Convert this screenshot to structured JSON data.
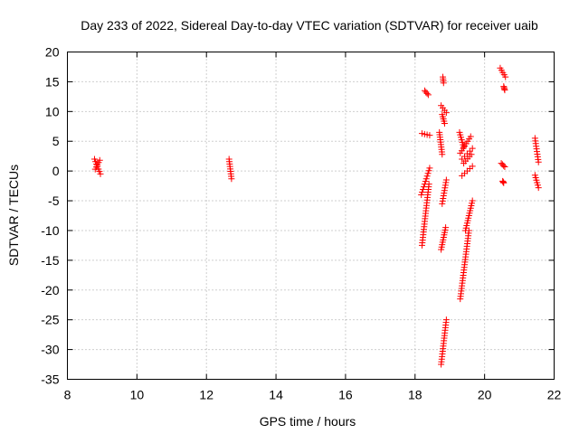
{
  "chart_data": {
    "type": "scatter",
    "title": "Day 233 of 2022, Sidereal Day-to-day VTEC variation (SDTVAR) for receiver uaib",
    "xlabel": "GPS time / hours",
    "ylabel": "SDTVAR / TECUs",
    "xlim": [
      8,
      22
    ],
    "ylim": [
      -35,
      20
    ],
    "xticks": [
      8,
      10,
      12,
      14,
      16,
      18,
      20,
      22
    ],
    "yticks": [
      -35,
      -30,
      -25,
      -20,
      -15,
      -10,
      -5,
      0,
      5,
      10,
      15,
      20
    ],
    "grid": true,
    "marker": "plus",
    "color": "#ff0000",
    "segments": [
      {
        "x": [
          8.78,
          8.95
        ],
        "y": [
          2.0,
          -0.5
        ]
      },
      {
        "x": [
          8.8,
          8.93
        ],
        "y": [
          0.3,
          1.8
        ]
      },
      {
        "x": [
          12.65,
          12.72
        ],
        "y": [
          2.0,
          -1.3
        ]
      },
      {
        "x": [
          18.2,
          18.4
        ],
        "y": [
          -12.5,
          -2.2
        ]
      },
      {
        "x": [
          18.18,
          18.42
        ],
        "y": [
          -4.0,
          0.5
        ]
      },
      {
        "x": [
          18.2,
          18.42
        ],
        "y": [
          6.3,
          6.0
        ]
      },
      {
        "x": [
          18.28,
          18.38
        ],
        "y": [
          13.5,
          12.8
        ]
      },
      {
        "x": [
          18.7,
          18.78
        ],
        "y": [
          6.5,
          2.8
        ]
      },
      {
        "x": [
          18.75,
          18.9
        ],
        "y": [
          11.0,
          9.8
        ]
      },
      {
        "x": [
          18.78,
          18.85
        ],
        "y": [
          9.5,
          8.0
        ]
      },
      {
        "x": [
          18.75,
          18.88
        ],
        "y": [
          -13.2,
          -9.5
        ]
      },
      {
        "x": [
          18.78,
          18.9
        ],
        "y": [
          -5.5,
          -1.5
        ]
      },
      {
        "x": [
          18.75,
          18.9
        ],
        "y": [
          -32.5,
          -25.0
        ]
      },
      {
        "x": [
          18.8,
          18.82
        ],
        "y": [
          15.8,
          14.8
        ]
      },
      {
        "x": [
          19.3,
          19.6
        ],
        "y": [
          3.0,
          5.8
        ]
      },
      {
        "x": [
          19.28,
          19.4
        ],
        "y": [
          6.5,
          4.0
        ]
      },
      {
        "x": [
          19.3,
          19.55
        ],
        "y": [
          -21.5,
          -10.0
        ]
      },
      {
        "x": [
          19.45,
          19.65
        ],
        "y": [
          -10.0,
          -5.0
        ]
      },
      {
        "x": [
          19.35,
          19.65
        ],
        "y": [
          2.0,
          3.8
        ]
      },
      {
        "x": [
          19.35,
          19.65
        ],
        "y": [
          -0.8,
          0.8
        ]
      },
      {
        "x": [
          19.4,
          19.62
        ],
        "y": [
          1.3,
          2.8
        ]
      },
      {
        "x": [
          20.45,
          20.6
        ],
        "y": [
          17.3,
          15.8
        ]
      },
      {
        "x": [
          20.55,
          20.58
        ],
        "y": [
          14.2,
          13.6
        ]
      },
      {
        "x": [
          20.48,
          20.58
        ],
        "y": [
          1.3,
          0.7
        ]
      },
      {
        "x": [
          20.52,
          20.55
        ],
        "y": [
          -1.7,
          -2.0
        ]
      },
      {
        "x": [
          21.45,
          21.55
        ],
        "y": [
          5.5,
          1.5
        ]
      },
      {
        "x": [
          21.45,
          21.55
        ],
        "y": [
          -0.7,
          -2.8
        ]
      }
    ]
  }
}
